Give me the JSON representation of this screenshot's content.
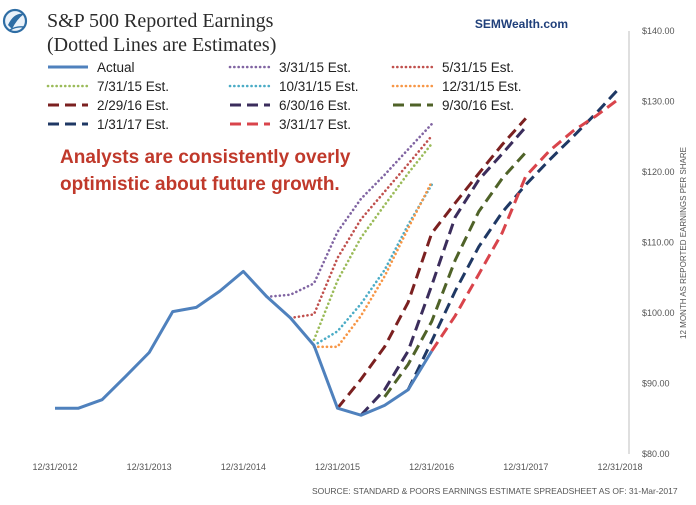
{
  "brand": "SEMWealth.com",
  "colors": {
    "actual": "#4f81bd",
    "est_3_31_15": "#8064a2",
    "est_5_31_15": "#c0504d",
    "est_7_31_15": "#9bbb59",
    "est_10_31_15": "#4bacc6",
    "est_12_31_15": "#f79646",
    "est_2_29_16": "#7b2020",
    "est_6_30_16": "#3b2d5c",
    "est_9_30_16": "#4f6228",
    "est_1_31_17": "#1f3864",
    "est_3_31_17": "#d9444b",
    "note": "#c0392b"
  },
  "chart_data": {
    "type": "line",
    "title": "S&P 500 Reported Earnings",
    "subtitle": "(Dotted Lines are Estimates)",
    "annotation": [
      "Analysts are consistently overly",
      "optimistic about future growth."
    ],
    "ylabel": "12 MONTH AS REPORTED EARNINGS PER SHARE",
    "xlabel": "",
    "source": "SOURCE: STANDARD & POORS EARNINGS ESTIMATE SPREADSHEET AS OF:   31-Mar-2017",
    "ylim": [
      80,
      140
    ],
    "xlim": [
      2012.0,
      2018.0
    ],
    "y_ticks": [
      80,
      90,
      100,
      110,
      120,
      130,
      140
    ],
    "y_tick_labels": [
      "$80.00",
      "$90.00",
      "$100.00",
      "$110.00",
      "$120.00",
      "$130.00",
      "$140.00"
    ],
    "x_ticks": [
      2012.0,
      2013.0,
      2014.0,
      2015.0,
      2016.0,
      2017.0,
      2018.0
    ],
    "x_tick_labels": [
      "12/31/2012",
      "12/31/2013",
      "12/31/2014",
      "12/31/2015",
      "12/31/2016",
      "12/31/2017",
      "12/31/2018"
    ],
    "grid": false,
    "legend_position": "top",
    "series": [
      {
        "name": "Actual",
        "style": "solid",
        "color": "#4f81bd",
        "x": [
          2012.0,
          2012.25,
          2012.5,
          2012.75,
          2013.0,
          2013.25,
          2013.5,
          2013.75,
          2014.0,
          2014.25,
          2014.5,
          2014.75,
          2015.0,
          2015.25,
          2015.5,
          2015.75,
          2016.0
        ],
        "y": [
          86.5,
          86.5,
          87.7,
          91,
          94.4,
          100.2,
          100.8,
          103.1,
          105.9,
          102.3,
          99.3,
          95.4,
          86.5,
          85.5,
          86.9,
          89.1,
          94.6
        ]
      },
      {
        "name": "3/31/15 Est.",
        "style": "dotted",
        "color": "#8064a2",
        "x": [
          2014.25,
          2014.5,
          2014.75,
          2015.0,
          2015.25,
          2015.5,
          2015.75,
          2016.0
        ],
        "y": [
          102.3,
          102.6,
          104.2,
          111.5,
          116.2,
          119.6,
          123.2,
          126.8
        ]
      },
      {
        "name": "5/31/15 Est.",
        "style": "dotted",
        "color": "#c0504d",
        "x": [
          2014.5,
          2014.75,
          2015.0,
          2015.25,
          2015.5,
          2015.75,
          2016.0
        ],
        "y": [
          99.3,
          99.8,
          107.8,
          113.3,
          117.2,
          121.1,
          125.1
        ]
      },
      {
        "name": "7/31/15 Est.",
        "style": "dotted",
        "color": "#9bbb59",
        "x": [
          2014.75,
          2015.0,
          2015.25,
          2015.5,
          2015.75,
          2016.0
        ],
        "y": [
          96.2,
          104.6,
          110.7,
          115.3,
          119.8,
          124.0
        ]
      },
      {
        "name": "10/31/15 Est.",
        "style": "dotted",
        "color": "#4bacc6",
        "x": [
          2014.75,
          2015.0,
          2015.25,
          2015.5,
          2015.75,
          2016.0
        ],
        "y": [
          95.4,
          97.4,
          101.3,
          106.1,
          112.5,
          118.2
        ]
      },
      {
        "name": "12/31/15 Est.",
        "style": "dotted",
        "color": "#f79646",
        "x": [
          2014.75,
          2015.0,
          2015.25,
          2015.5,
          2015.75,
          2016.0
        ],
        "y": [
          95.2,
          95.2,
          99.6,
          105.2,
          112.0,
          118.6
        ]
      },
      {
        "name": "2/29/16 Est.",
        "style": "dashed",
        "color": "#7b2020",
        "x": [
          2015.0,
          2015.25,
          2015.5,
          2015.75,
          2016.0,
          2016.25,
          2016.5,
          2016.75,
          2017.0
        ],
        "y": [
          86.5,
          90.6,
          95.2,
          101.5,
          111.3,
          115.6,
          119.8,
          123.9,
          127.6
        ]
      },
      {
        "name": "6/30/16 Est.",
        "style": "dashed",
        "color": "#3b2d5c",
        "x": [
          2015.25,
          2015.5,
          2015.75,
          2016.0,
          2016.25,
          2016.5,
          2016.75,
          2017.0
        ],
        "y": [
          85.5,
          89.1,
          94.6,
          103.9,
          113.6,
          118.9,
          122.6,
          126.4
        ]
      },
      {
        "name": "9/30/16 Est.",
        "style": "dashed",
        "color": "#4f6228",
        "x": [
          2015.5,
          2015.75,
          2016.0,
          2016.25,
          2016.5,
          2016.75,
          2017.0
        ],
        "y": [
          88.1,
          92.7,
          98.8,
          107.5,
          114.4,
          119.1,
          122.8
        ]
      },
      {
        "name": "1/31/17 Est.",
        "style": "dashed",
        "color": "#1f3864",
        "x": [
          2015.75,
          2016.0,
          2016.25,
          2016.5,
          2016.75,
          2017.0,
          2017.25,
          2017.5,
          2017.75,
          2018.0
        ],
        "y": [
          89.1,
          96.0,
          103.1,
          109.4,
          114.3,
          118.2,
          121.7,
          125.0,
          128.4,
          132.0
        ]
      },
      {
        "name": "3/31/17 Est.",
        "style": "dashed",
        "color": "#d9444b",
        "x": [
          2016.0,
          2016.25,
          2016.5,
          2016.75,
          2017.0,
          2017.25,
          2017.5,
          2017.75,
          2018.0
        ],
        "y": [
          94.6,
          99.6,
          105.5,
          111.4,
          119.4,
          123.0,
          125.8,
          128.0,
          130.5
        ]
      }
    ]
  }
}
